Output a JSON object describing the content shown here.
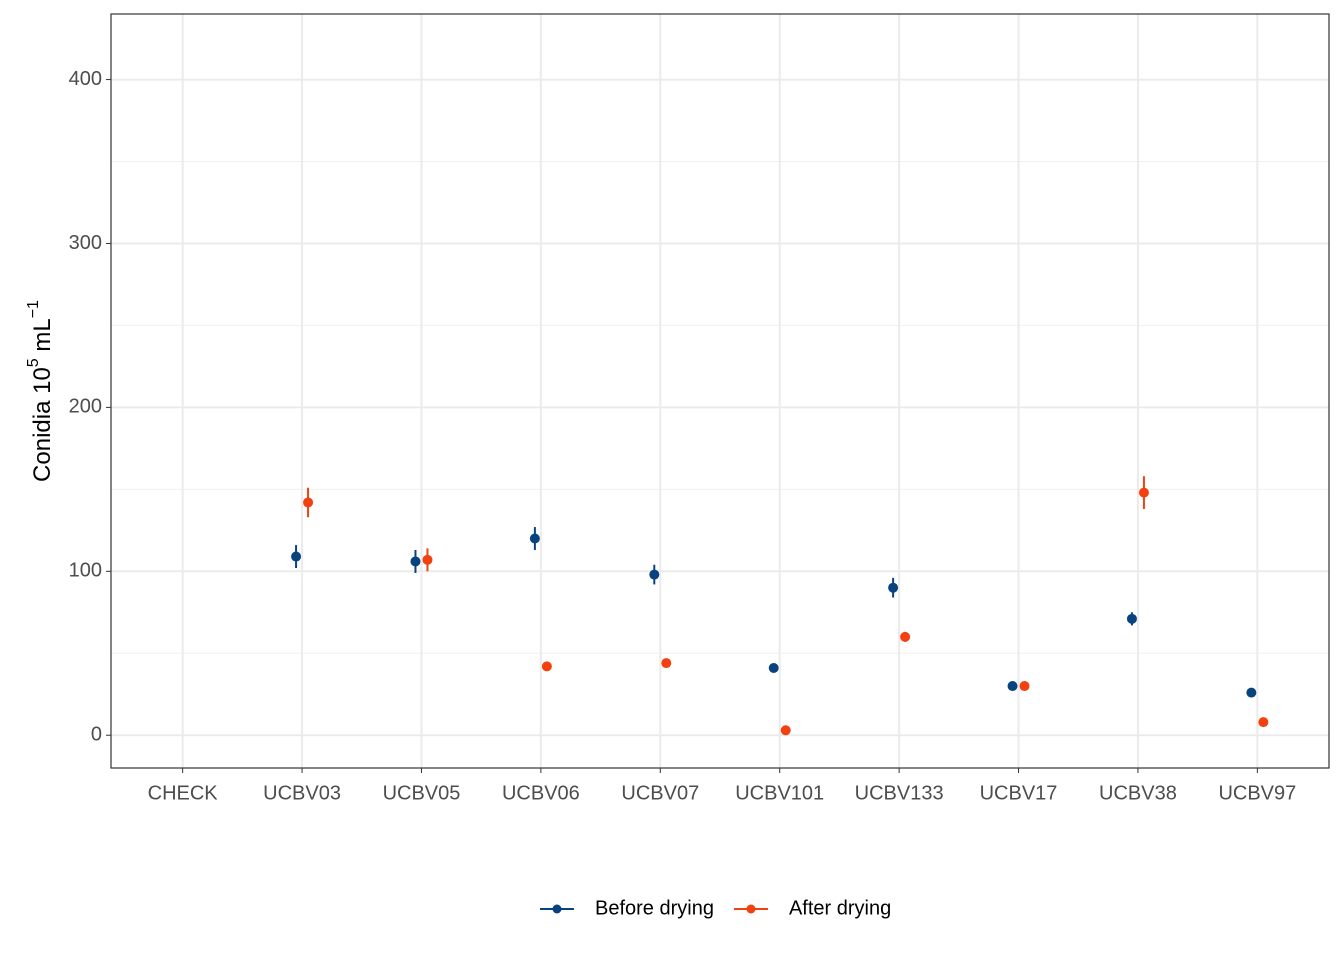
{
  "chart_data": {
    "type": "pointrange",
    "y_label": {
      "text": "Conidia 10",
      "exp": "5",
      "unit": " mL",
      "unit_exp": "−1"
    },
    "categories": [
      "CHECK",
      "UCBV03",
      "UCBV05",
      "UCBV06",
      "UCBV07",
      "UCBV101",
      "UCBV133",
      "UCBV17",
      "UCBV38",
      "UCBV97"
    ],
    "series": [
      {
        "name": "Before drying",
        "color": "#08437f",
        "values": [
          null,
          109,
          106,
          120,
          98,
          41,
          90,
          30,
          71,
          26
        ],
        "errors": [
          null,
          7,
          7,
          7,
          6,
          2,
          6,
          2,
          4,
          2
        ]
      },
      {
        "name": "After drying",
        "color": "#f2400f",
        "values": [
          null,
          142,
          107,
          42,
          44,
          3,
          60,
          30,
          148,
          8
        ],
        "errors": [
          null,
          9,
          7,
          2,
          2,
          2,
          3,
          2,
          10,
          2
        ]
      }
    ],
    "ylim": [
      -20,
      440
    ],
    "yticks": [
      0,
      100,
      200,
      300,
      400
    ],
    "y_minor_ticks": [
      50,
      150,
      250,
      350
    ],
    "grid": true,
    "legend": "bottom"
  }
}
